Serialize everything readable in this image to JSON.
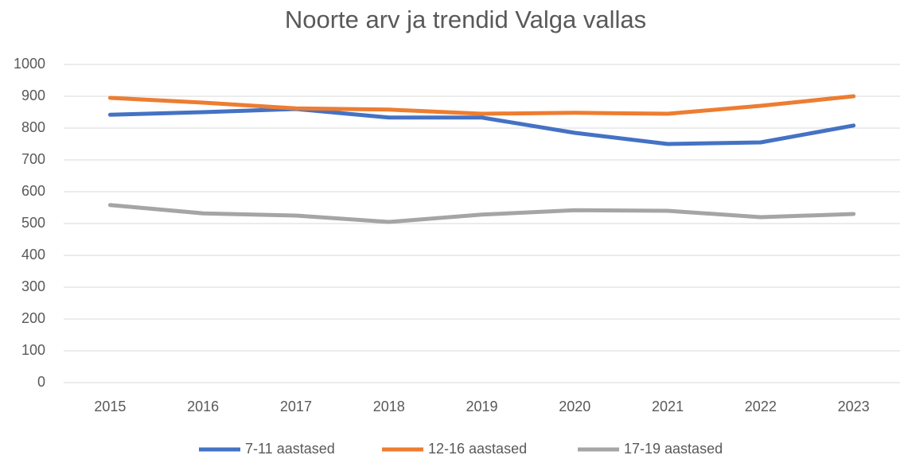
{
  "chart_data": {
    "type": "line",
    "title": "Noorte arv ja trendid Valga vallas",
    "categories": [
      "2015",
      "2016",
      "2017",
      "2018",
      "2019",
      "2020",
      "2021",
      "2022",
      "2023"
    ],
    "series": [
      {
        "name": "7-11 aastased",
        "color": "#4472c4",
        "values": [
          842,
          850,
          860,
          833,
          833,
          785,
          750,
          755,
          808
        ]
      },
      {
        "name": "12-16 aastased",
        "color": "#ed7d31",
        "values": [
          895,
          880,
          862,
          858,
          845,
          848,
          845,
          870,
          900
        ]
      },
      {
        "name": "17-19 aastased",
        "color": "#a5a5a5",
        "values": [
          558,
          532,
          525,
          505,
          528,
          542,
          540,
          520,
          530
        ]
      }
    ],
    "ylim": [
      0,
      1000
    ],
    "yticks": [
      0,
      100,
      200,
      300,
      400,
      500,
      600,
      700,
      800,
      900,
      1000
    ],
    "grid": true,
    "legend": "bottom"
  }
}
